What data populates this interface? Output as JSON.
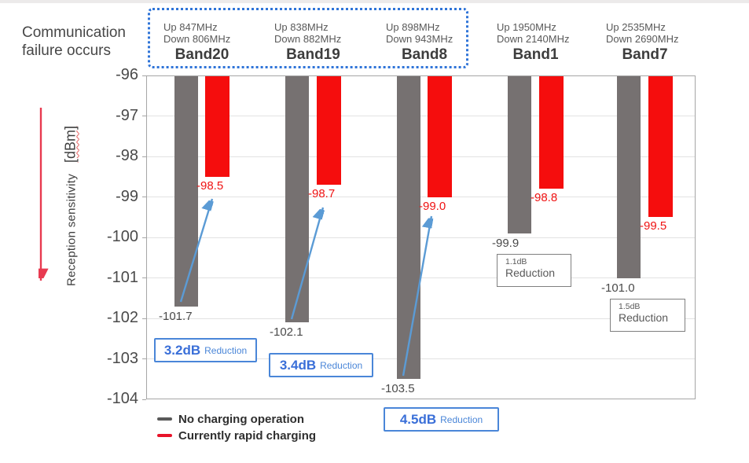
{
  "annotation": {
    "communication_failure": "Communication\nfailure occurs"
  },
  "y_axis": {
    "label_main": "Reception sensitivity",
    "label_unit": "[dBm]",
    "tick_labels": [
      "-96",
      "-97",
      "-98",
      "-99",
      "-100",
      "-101",
      "-102",
      "-103",
      "-104"
    ]
  },
  "legend": {
    "items": [
      {
        "label": "No charging operation",
        "color": "#595959"
      },
      {
        "label": "Currently rapid charging",
        "color": "#e8132a"
      }
    ]
  },
  "chart_data": {
    "type": "bar",
    "title": "",
    "xlabel": "",
    "ylabel": "Reception sensitivity [dBm]",
    "ylim": [
      -104,
      -96
    ],
    "yticks": [
      -96,
      -97,
      -98,
      -99,
      -100,
      -101,
      -102,
      -103,
      -104
    ],
    "grid": true,
    "legend_position": "bottom-left",
    "categories": [
      "Band20",
      "Band19",
      "Band8",
      "Band1",
      "Band7"
    ],
    "band_frequencies": [
      {
        "up": "Up 847MHz",
        "down": "Down 806MHz"
      },
      {
        "up": "Up 838MHz",
        "down": "Down 882MHz"
      },
      {
        "up": "Up 898MHz",
        "down": "Down 943MHz"
      },
      {
        "up": "Up 1950MHz",
        "down": "Down 2140MHz"
      },
      {
        "up": "Up 2535MHz",
        "down": "Down 2690MHz"
      }
    ],
    "series": [
      {
        "name": "No charging operation",
        "color": "#767171",
        "values": [
          -101.7,
          -102.1,
          -103.5,
          -99.9,
          -101.0
        ],
        "labels": [
          "-101.7",
          "-102.1",
          "-103.5",
          "-99.9",
          "-101.0"
        ]
      },
      {
        "name": "Currently rapid charging",
        "color": "#f50d0d",
        "values": [
          -98.5,
          -98.7,
          -99.0,
          -98.8,
          -99.5
        ],
        "labels": [
          "-98.5",
          "-98.7",
          "-99.0",
          "-98.8",
          "-99.5"
        ]
      }
    ],
    "reductions": [
      {
        "band": "Band20",
        "amount": "3.2dB",
        "suffix": "Reduction",
        "style": "blue"
      },
      {
        "band": "Band19",
        "amount": "3.4dB",
        "suffix": "Reduction",
        "style": "blue"
      },
      {
        "band": "Band8",
        "amount": "4.5dB",
        "suffix": "Reduction",
        "style": "blue"
      },
      {
        "band": "Band1",
        "amount": "1.1dB",
        "suffix": "Reduction",
        "style": "gray"
      },
      {
        "band": "Band7",
        "amount": "1.5dB",
        "suffix": "Reduction",
        "style": "gray"
      }
    ],
    "highlighted_bands": [
      "Band20",
      "Band19",
      "Band8"
    ],
    "colors": {
      "bar_gray": "#767171",
      "bar_red": "#f50d0d",
      "highlight_border_blue": "#2f74d8",
      "arrow_blue": "#5b9bd5",
      "failure_arrow_red": "#e83a50",
      "reduction_text_blue": "#3a6fd8"
    }
  }
}
